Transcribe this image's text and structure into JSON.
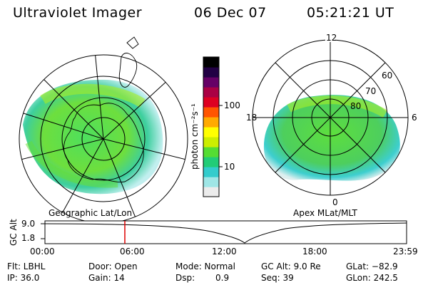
{
  "header": {
    "title": "Ultraviolet Imager",
    "date": "06 Dec 07",
    "time": "05:21:21 UT"
  },
  "left_map": {
    "caption": "Geographic Lat/Lon"
  },
  "right_map": {
    "caption": "Apex MLat/MLT",
    "mlt_labels": {
      "top": "12",
      "left": "18",
      "right": "6",
      "bottom": "0"
    },
    "lat_labels": [
      "60",
      "70",
      "80"
    ]
  },
  "colorbar": {
    "unit_label": "photon cm⁻²s⁻¹",
    "ticks": [
      "100",
      "10"
    ],
    "scale": "log",
    "colors": [
      "#ececec",
      "#9fe6e6",
      "#33cccc",
      "#22cc77",
      "#55dd33",
      "#ccee00",
      "#ffff00",
      "#ffaa00",
      "#ff5500",
      "#dd0022",
      "#aa0044",
      "#660066",
      "#220044",
      "#000000"
    ]
  },
  "altitude_strip": {
    "ylabel": "GC Alt",
    "y_ticks": [
      "9.0",
      "1.8"
    ],
    "x_ticks": [
      "00:00",
      "06:00",
      "12:00",
      "18:00",
      "23:59"
    ],
    "current_time_marker": "05:21:21"
  },
  "status": {
    "row1": {
      "flt": "Flt: LBHL",
      "door": "Door: Open",
      "mode": "Mode: Normal",
      "gc_alt": "GC Alt: 9.0 Re",
      "glat": "GLat: −82.9"
    },
    "row2": {
      "ip": "IP: 36.0",
      "gain": "Gain: 14",
      "dsp_label": "Dsp:",
      "dsp_value": "0.9",
      "seq": "Seq: 39",
      "glon": "GLon: 242.5"
    }
  },
  "colors": {
    "background": "#ffffff",
    "marker": "#dd0000",
    "grid": "#000000"
  }
}
